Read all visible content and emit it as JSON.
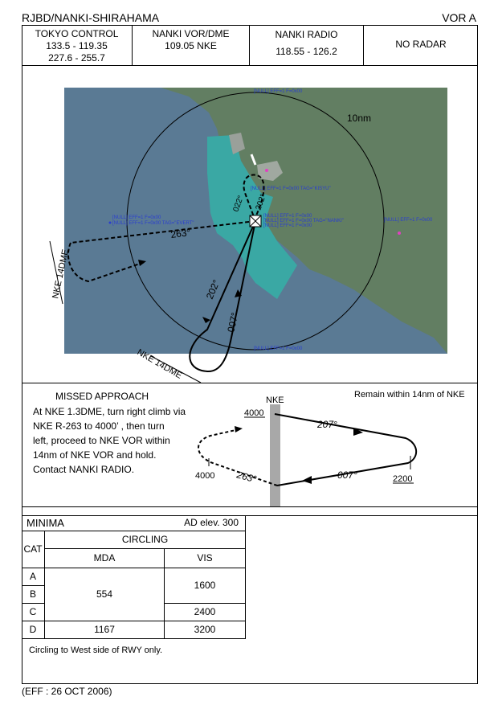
{
  "header": {
    "left": "RJBD/NANKI-SHIRAHAMA",
    "right": "VOR A"
  },
  "freq": [
    {
      "name": "TOKYO CONTROL",
      "lines": [
        "133.5 - 119.35",
        "227.6 - 255.7"
      ]
    },
    {
      "name": "NANKI VOR/DME",
      "lines": [
        "109.05   NKE"
      ]
    },
    {
      "name": "NANKI RADIO",
      "lines": [
        "118.55 - 126.2"
      ]
    },
    {
      "name": "NO RADAR",
      "lines": []
    }
  ],
  "plan": {
    "range_label": "10nm",
    "dme_label_west": "NKE 14DME",
    "dme_label_south": "NKE 14DME",
    "courses": [
      "263°",
      "202°",
      "007°",
      "202°",
      "022°"
    ],
    "map_artifacts": [
      "[NULL] EFF=1 F=0x00",
      "[NULL] EFF=1 F=0x00 TAG=\"KISYU\"",
      "[NULL] EFF=1 F=0x00",
      "[NULL] EFF=1 F=0x00 TAG=\"EVERT\"",
      "[NULL] EFF=1 F=0x00",
      "[NULL] EFF=1 F=0x00 TAG=\"NANKI\"",
      "[NULL] EFF=1 F=0x00",
      "[NULL] EFF=1 F=0x00",
      "[NULL] EFF=1 F=0x00"
    ],
    "colors": {
      "sea": "#5a7a94",
      "land": "#627e62",
      "shallow": "#3aa8a4",
      "restricted": "#e040c0"
    }
  },
  "missed_approach": {
    "title": "MISSED APPROACH",
    "lines": [
      "At NKE 1.3DME, turn right climb via",
      "NKE R-263  to 4000’ , then turn",
      "left, proceed to NKE VOR within",
      "14nm of NKE VOR and hold.",
      "Contact NANKI RADIO."
    ],
    "note": "Remain within 14nm of NKE",
    "profile": {
      "fix": "NKE",
      "alt_top": "4000",
      "alt_left": "4000",
      "alt_right": "2200",
      "course_out": "207°",
      "course_in": "007°",
      "course_missed": "263°"
    }
  },
  "minima": {
    "title": "MINIMA",
    "ad_elev": "AD elev. 300",
    "type": "CIRCLING",
    "cat_header": "CAT",
    "mda_header": "MDA",
    "vis_header": "VIS",
    "cats": [
      "A",
      "B",
      "C",
      "D"
    ],
    "mda_abc": "554",
    "mda_d": "1167",
    "vis_ab": "1600",
    "vis_c": "2400",
    "vis_d": "3200",
    "note": "Circling to West side of RWY only."
  },
  "footer": {
    "eff": "(EFF : 26 OCT 2006)"
  }
}
